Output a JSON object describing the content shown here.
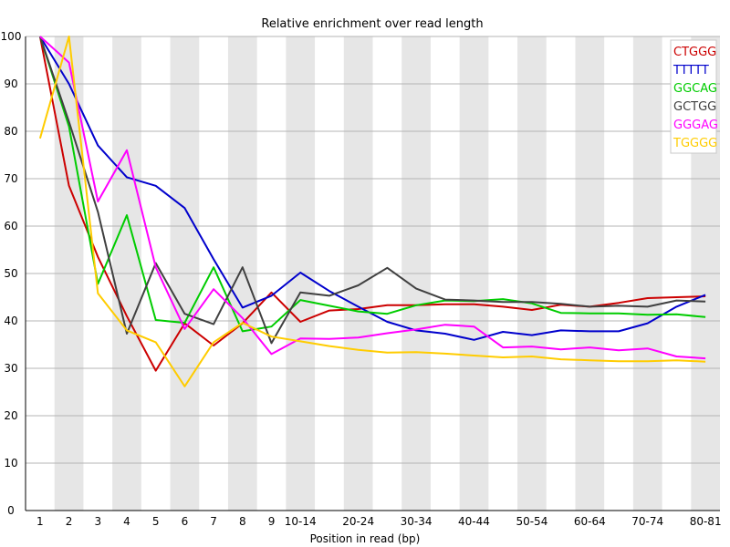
{
  "chart_data": {
    "type": "line",
    "title": "Relative enrichment over read length",
    "xlabel": "Position in read (bp)",
    "ylabel": "",
    "ylim": [
      0,
      100
    ],
    "yticks": [
      0,
      10,
      20,
      30,
      40,
      50,
      60,
      70,
      80,
      90,
      100
    ],
    "categories": [
      "1",
      "2",
      "3",
      "4",
      "5",
      "6",
      "7",
      "8",
      "9",
      "10-14",
      "15-19",
      "20-24",
      "25-29",
      "30-34",
      "35-39",
      "40-44",
      "45-49",
      "50-54",
      "55-59",
      "60-64",
      "65-69",
      "70-74",
      "75-79",
      "80-81"
    ],
    "tick_labels": [
      "1",
      "2",
      "3",
      "4",
      "5",
      "6",
      "7",
      "8",
      "9",
      "10-14",
      "",
      "20-24",
      "",
      "30-34",
      "",
      "40-44",
      "",
      "50-54",
      "",
      "60-64",
      "",
      "70-74",
      "",
      "80-81"
    ],
    "grid": "alternating vertical bands",
    "legend_position": "top-right",
    "series": [
      {
        "name": "CTGGG",
        "color": "#cc0000",
        "values": [
          100,
          68.5,
          53.5,
          41,
          29.5,
          39.5,
          34.8,
          39.5,
          46,
          39.8,
          42.2,
          42.5,
          43.3,
          43.3,
          43.5,
          43.5,
          43,
          42.3,
          43.4,
          43,
          43.8,
          44.8,
          45,
          45.2
        ]
      },
      {
        "name": "TTTTT",
        "color": "#0000cc",
        "values": [
          100,
          90,
          77,
          70.3,
          68.5,
          63.8,
          53,
          42.8,
          45.3,
          50.2,
          46.3,
          43,
          39.8,
          38,
          37.3,
          36,
          37.7,
          37,
          38,
          37.8,
          37.8,
          39.5,
          43,
          45.5
        ]
      },
      {
        "name": "GGCAG",
        "color": "#00cc00",
        "values": [
          100,
          81,
          47.8,
          62.3,
          40.2,
          39.6,
          51.3,
          37.8,
          38.8,
          44.4,
          43.2,
          42,
          41.5,
          43.3,
          44.3,
          44.2,
          44.6,
          43.7,
          41.7,
          41.6,
          41.6,
          41.3,
          41.4,
          40.8
        ]
      },
      {
        "name": "GCTGG",
        "color": "#404040",
        "values": [
          100,
          82,
          63,
          37.3,
          52.2,
          41.5,
          39.3,
          51.3,
          35.3,
          46,
          45.3,
          47.5,
          51.2,
          46.8,
          44.5,
          44.3,
          44,
          44,
          43.6,
          43,
          43.2,
          43,
          44.3,
          44.1
        ]
      },
      {
        "name": "GGGAG",
        "color": "#ff00ff",
        "values": [
          100,
          94.5,
          65.2,
          76,
          51.3,
          38.3,
          46.7,
          40.6,
          33,
          36.3,
          36.2,
          36.5,
          37.4,
          38.2,
          39.2,
          38.8,
          34.4,
          34.6,
          34,
          34.4,
          33.8,
          34.2,
          32.5,
          32.1
        ]
      },
      {
        "name": "TGGGG",
        "color": "#ffcc00",
        "values": [
          78.5,
          100,
          45.8,
          38,
          35.5,
          26.2,
          35.5,
          39.6,
          36.7,
          35.7,
          34.7,
          33.9,
          33.3,
          33.4,
          33.1,
          32.7,
          32.3,
          32.5,
          31.9,
          31.7,
          31.5,
          31.5,
          31.7,
          31.4
        ]
      }
    ]
  }
}
